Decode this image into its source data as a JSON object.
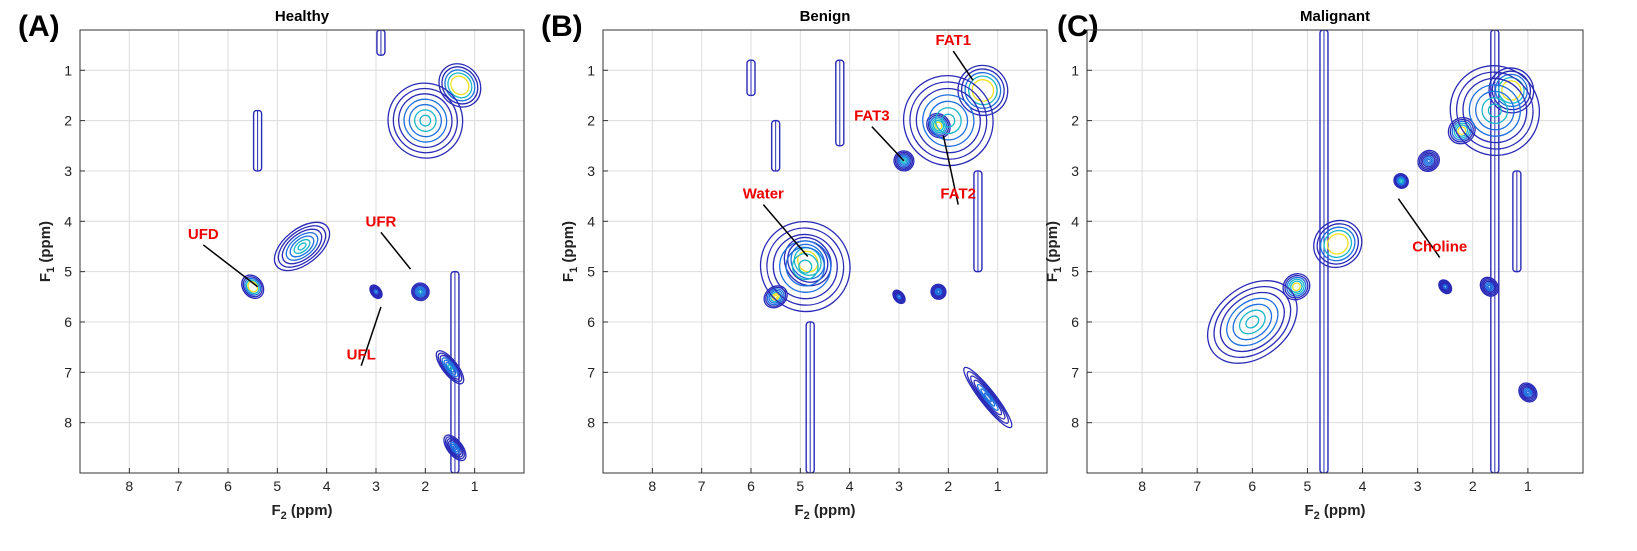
{
  "figure": {
    "colors": {
      "low": "#2a2ab8",
      "mid1": "#1e6fe0",
      "mid2": "#19b5c9",
      "high": "#f0e020",
      "peak": "#ffffff",
      "annotation": "#ee0000",
      "grid": "#dcdcdc"
    }
  },
  "chart_data": [
    {
      "type": "contour",
      "panel_label": "(A)",
      "title": "Healthy",
      "xlabel": "F2 (ppm)",
      "ylabel": "F1 (ppm)",
      "xlim": [
        9,
        0
      ],
      "ylim": [
        0.2,
        9
      ],
      "xticks": [
        8,
        7,
        6,
        5,
        4,
        3,
        2,
        1
      ],
      "yticks": [
        1,
        2,
        3,
        4,
        5,
        6,
        7,
        8
      ],
      "grid": true,
      "peaks": [
        {
          "f2": 5.5,
          "f1": 5.3,
          "w": 0.4,
          "h": 0.5,
          "level": 1.0
        },
        {
          "f2": 4.5,
          "f1": 4.5,
          "w": 1.3,
          "h": 0.7,
          "level": 0.55
        },
        {
          "f2": 1.3,
          "f1": 1.3,
          "w": 0.8,
          "h": 0.9,
          "level": 1.0
        },
        {
          "f2": 2.0,
          "f1": 2.0,
          "w": 1.5,
          "h": 1.5,
          "level": 0.6
        },
        {
          "f2": 2.1,
          "f1": 5.4,
          "w": 0.35,
          "h": 0.35,
          "level": 0.45
        },
        {
          "f2": 3.0,
          "f1": 5.4,
          "w": 0.2,
          "h": 0.3,
          "level": 0.3
        },
        {
          "f2": 1.5,
          "f1": 6.9,
          "w": 0.3,
          "h": 0.8,
          "level": 0.45
        },
        {
          "f2": 1.4,
          "f1": 8.5,
          "w": 0.3,
          "h": 0.6,
          "level": 0.35
        }
      ],
      "streaks": [
        {
          "f2": 5.4,
          "f1a": 1.8,
          "f1b": 3.0
        },
        {
          "f2": 1.4,
          "f1a": 5.0,
          "f1b": 9.0
        },
        {
          "f2": 2.9,
          "f1a": 0.2,
          "f1b": 0.7
        }
      ],
      "annotations": [
        {
          "text": "UFD",
          "label_f2": 6.5,
          "label_f1": 4.35,
          "point_f2": 5.4,
          "point_f1": 5.3
        },
        {
          "text": "UFR",
          "label_f2": 2.9,
          "label_f1": 4.1,
          "point_f2": 2.3,
          "point_f1": 4.95
        },
        {
          "text": "UFL",
          "label_f2": 3.3,
          "label_f1": 6.75,
          "point_f2": 2.9,
          "point_f1": 5.7
        }
      ]
    },
    {
      "type": "contour",
      "panel_label": "(B)",
      "title": "Benign",
      "xlabel": "F2 (ppm)",
      "ylabel": "F1 (ppm)",
      "xlim": [
        9,
        0
      ],
      "ylim": [
        0.2,
        9
      ],
      "xticks": [
        8,
        7,
        6,
        5,
        4,
        3,
        2,
        1
      ],
      "yticks": [
        1,
        2,
        3,
        4,
        5,
        6,
        7,
        8
      ],
      "grid": true,
      "peaks": [
        {
          "f2": 4.85,
          "f1": 4.8,
          "w": 0.9,
          "h": 1.0,
          "level": 1.0
        },
        {
          "f2": 5.5,
          "f1": 5.5,
          "w": 0.5,
          "h": 0.4,
          "level": 0.8
        },
        {
          "f2": 4.9,
          "f1": 4.9,
          "w": 1.8,
          "h": 1.8,
          "level": 0.5
        },
        {
          "f2": 1.3,
          "f1": 1.4,
          "w": 1.0,
          "h": 1.0,
          "level": 1.0
        },
        {
          "f2": 2.2,
          "f1": 2.1,
          "w": 0.45,
          "h": 0.5,
          "level": 0.9
        },
        {
          "f2": 2.0,
          "f1": 2.0,
          "w": 1.8,
          "h": 1.8,
          "level": 0.55
        },
        {
          "f2": 2.9,
          "f1": 2.8,
          "w": 0.4,
          "h": 0.4,
          "level": 0.5
        },
        {
          "f2": 1.2,
          "f1": 7.5,
          "w": 0.3,
          "h": 1.5,
          "level": 0.35
        },
        {
          "f2": 2.2,
          "f1": 5.4,
          "w": 0.3,
          "h": 0.3,
          "level": 0.35
        },
        {
          "f2": 3.0,
          "f1": 5.5,
          "w": 0.2,
          "h": 0.3,
          "level": 0.3
        }
      ],
      "streaks": [
        {
          "f2": 4.8,
          "f1a": 6.0,
          "f1b": 9.0
        },
        {
          "f2": 1.4,
          "f1a": 3.0,
          "f1b": 5.0
        },
        {
          "f2": 6.0,
          "f1a": 0.8,
          "f1b": 1.5
        },
        {
          "f2": 4.2,
          "f1a": 0.8,
          "f1b": 2.5
        },
        {
          "f2": 5.5,
          "f1a": 2.0,
          "f1b": 3.0
        }
      ],
      "annotations": [
        {
          "text": "FAT1",
          "label_f2": 1.9,
          "label_f1": 0.5,
          "point_f2": 1.5,
          "point_f1": 1.2
        },
        {
          "text": "FAT3",
          "label_f2": 3.55,
          "label_f1": 2.0,
          "point_f2": 2.9,
          "point_f1": 2.8
        },
        {
          "text": "FAT2",
          "label_f2": 1.8,
          "label_f1": 3.55,
          "point_f2": 2.1,
          "point_f1": 2.3
        },
        {
          "text": "Water",
          "label_f2": 5.75,
          "label_f1": 3.55,
          "point_f2": 4.85,
          "point_f1": 4.7
        }
      ]
    },
    {
      "type": "contour",
      "panel_label": "(C)",
      "title": "Malignant",
      "xlabel": "F2 (ppm)",
      "ylabel": "F1 (ppm)",
      "xlim": [
        9,
        0
      ],
      "ylim": [
        0.2,
        9
      ],
      "xticks": [
        8,
        7,
        6,
        5,
        4,
        3,
        2,
        1
      ],
      "yticks": [
        1,
        2,
        3,
        4,
        5,
        6,
        7,
        8
      ],
      "grid": true,
      "peaks": [
        {
          "f2": 4.45,
          "f1": 4.45,
          "w": 0.9,
          "h": 0.9,
          "level": 1.0
        },
        {
          "f2": 5.2,
          "f1": 5.3,
          "w": 0.5,
          "h": 0.5,
          "level": 0.9
        },
        {
          "f2": 6.0,
          "f1": 6.0,
          "w": 1.8,
          "h": 1.4,
          "level": 0.5
        },
        {
          "f2": 1.3,
          "f1": 1.4,
          "w": 0.8,
          "h": 0.9,
          "level": 1.0
        },
        {
          "f2": 2.2,
          "f1": 2.2,
          "w": 0.5,
          "h": 0.5,
          "level": 0.9
        },
        {
          "f2": 1.6,
          "f1": 1.8,
          "w": 1.6,
          "h": 1.8,
          "level": 0.6
        },
        {
          "f2": 3.3,
          "f1": 3.2,
          "w": 0.25,
          "h": 0.3,
          "level": 0.5
        },
        {
          "f2": 2.8,
          "f1": 2.8,
          "w": 0.4,
          "h": 0.4,
          "level": 0.4
        },
        {
          "f2": 1.7,
          "f1": 5.3,
          "w": 0.3,
          "h": 0.4,
          "level": 0.35
        },
        {
          "f2": 2.5,
          "f1": 5.3,
          "w": 0.2,
          "h": 0.3,
          "level": 0.3
        },
        {
          "f2": 1.0,
          "f1": 7.4,
          "w": 0.3,
          "h": 0.4,
          "level": 0.4
        }
      ],
      "streaks": [
        {
          "f2": 4.7,
          "f1a": 0.2,
          "f1b": 9.0
        },
        {
          "f2": 1.6,
          "f1a": 0.2,
          "f1b": 9.0
        },
        {
          "f2": 1.2,
          "f1a": 3.0,
          "f1b": 5.0
        }
      ],
      "annotations": [
        {
          "text": "Choline",
          "label_f2": 2.6,
          "label_f1": 4.6,
          "point_f2": 3.35,
          "point_f1": 3.55
        }
      ]
    }
  ]
}
